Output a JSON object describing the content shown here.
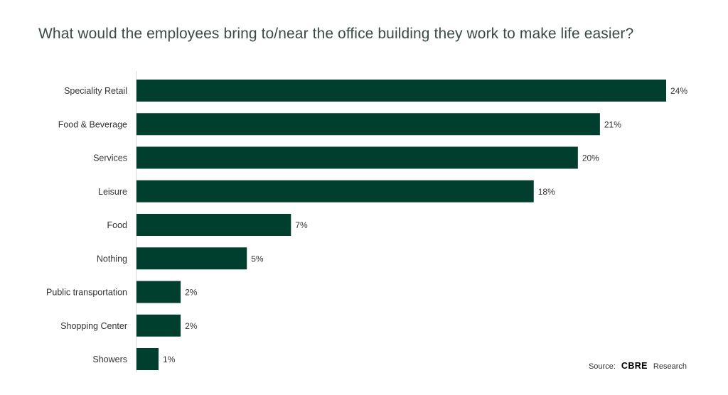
{
  "chart_data": {
    "type": "bar",
    "orientation": "horizontal",
    "title": "What would the employees bring to/near the office building they work to make life easier?",
    "categories": [
      "Speciality Retail",
      "Food & Beverage",
      "Services",
      "Leisure",
      "Food",
      "Nothing",
      "Public transportation",
      "Shopping Center",
      "Showers"
    ],
    "values": [
      24,
      21,
      20,
      18,
      7,
      5,
      2,
      2,
      1
    ],
    "value_labels": [
      "24%",
      "21%",
      "20%",
      "18%",
      "7%",
      "5%",
      "2%",
      "2%",
      "1%"
    ],
    "unit": "%",
    "xlim": [
      0,
      24
    ],
    "bar_color": "#003f2d",
    "grid": false,
    "legend": "none"
  },
  "source": {
    "prefix": "Source:",
    "brand": "CBRE",
    "suffix": "Research"
  }
}
